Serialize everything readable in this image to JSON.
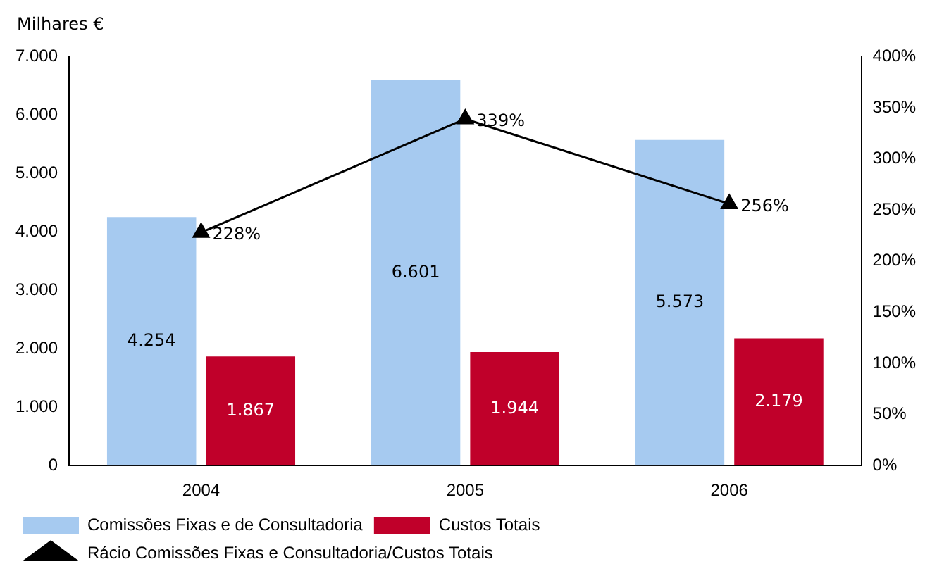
{
  "chart_data": {
    "type": "bar",
    "ylabel": "Milhares €",
    "categories": [
      "2004",
      "2005",
      "2006"
    ],
    "series": [
      {
        "name": "Comissões Fixas e de Consultadoria",
        "color": "#a6caf0",
        "values": [
          4254,
          6601,
          5573
        ],
        "value_labels": [
          "4.254",
          "6.601",
          "5.573"
        ]
      },
      {
        "name": "Custos Totais",
        "color": "#c0002a",
        "values": [
          1867,
          1944,
          2179
        ],
        "value_labels": [
          "1.867",
          "1.944",
          "2.179"
        ]
      },
      {
        "name": "Rácio Comissões Fixas e Consultadoria/Custos Totais",
        "type": "line",
        "axis": "y2",
        "color": "#000000",
        "marker": "triangle",
        "line_style": "solid",
        "values": [
          228,
          339,
          256
        ],
        "value_labels": [
          "228%",
          "339%",
          "256%"
        ]
      }
    ],
    "ylim": [
      0,
      7000
    ],
    "yticks": [
      {
        "value": 0,
        "label": "0"
      },
      {
        "value": 1000,
        "label": "1.000"
      },
      {
        "value": 2000,
        "label": "2.000"
      },
      {
        "value": 3000,
        "label": "3.000"
      },
      {
        "value": 4000,
        "label": "4.000"
      },
      {
        "value": 5000,
        "label": "5.000"
      },
      {
        "value": 6000,
        "label": "6.000"
      },
      {
        "value": 7000,
        "label": "7.000"
      }
    ],
    "y2lim": [
      0,
      400
    ],
    "y2ticks": [
      {
        "value": 0,
        "label": "0%"
      },
      {
        "value": 50,
        "label": "50%"
      },
      {
        "value": 100,
        "label": "100%"
      },
      {
        "value": 150,
        "label": "150%"
      },
      {
        "value": 200,
        "label": "200%"
      },
      {
        "value": 250,
        "label": "250%"
      },
      {
        "value": 300,
        "label": "300%"
      },
      {
        "value": 350,
        "label": "350%"
      },
      {
        "value": 400,
        "label": "400%"
      }
    ],
    "grid": false,
    "legend": "bottom"
  }
}
